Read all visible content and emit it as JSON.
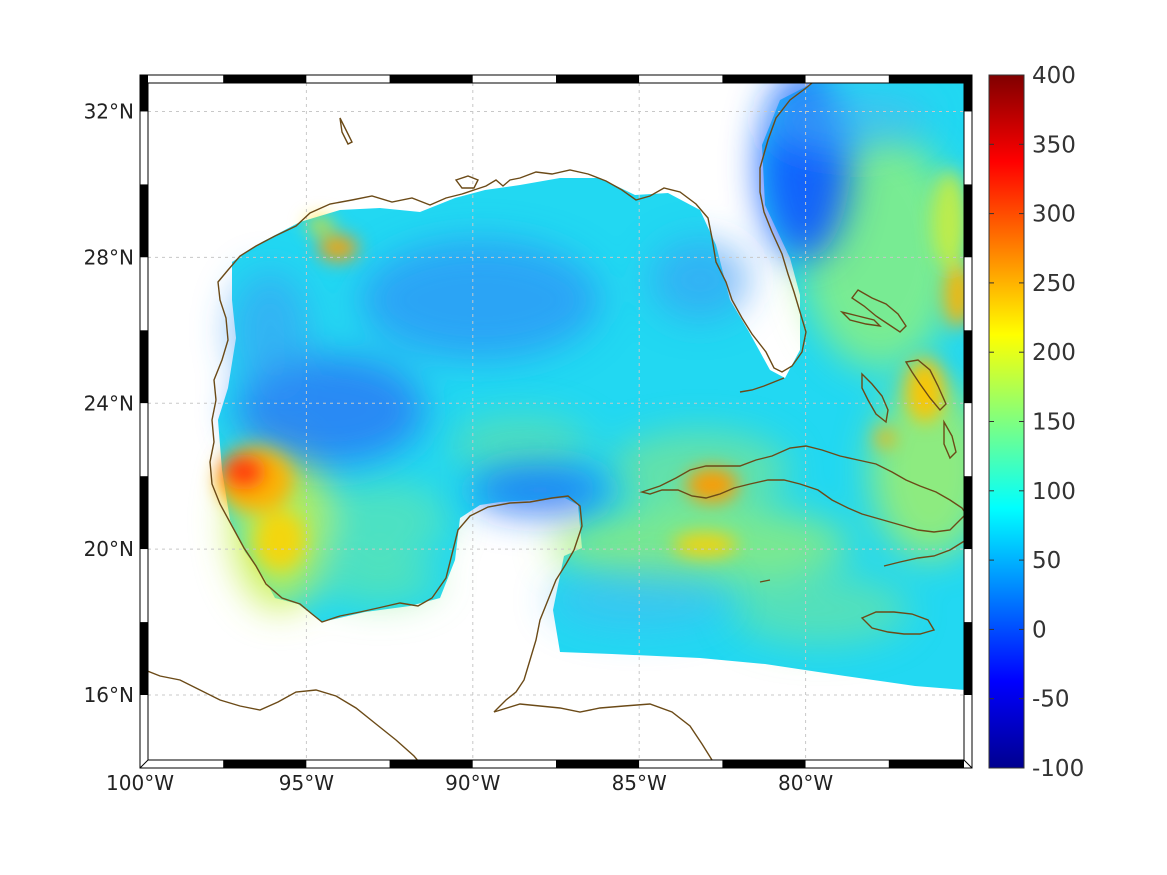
{
  "map": {
    "region": "Gulf of Mexico and western Caribbean",
    "projection": "equirectangular",
    "lon_range": [
      -100,
      -75
    ],
    "lat_range": [
      14,
      33
    ],
    "grid": true,
    "lon_ticks": [
      {
        "value": -100,
        "label": "100°W"
      },
      {
        "value": -95,
        "label": "95°W"
      },
      {
        "value": -90,
        "label": "90°W"
      },
      {
        "value": -85,
        "label": "85°W"
      },
      {
        "value": -80,
        "label": "80°W"
      }
    ],
    "lat_ticks": [
      {
        "value": 32,
        "label": "32°N"
      },
      {
        "value": 28,
        "label": "28°N"
      },
      {
        "value": 24,
        "label": "24°N"
      },
      {
        "value": 20,
        "label": "20°N"
      },
      {
        "value": 16,
        "label": "16°N"
      }
    ],
    "coastline_color": "#6b4a17",
    "ocean_field": {
      "colormap": "jet",
      "dominant_range": [
        50,
        150
      ],
      "hotspots": [
        {
          "name": "western-gulf-tamaulipas",
          "lon": -97,
          "lat": 22.2,
          "value": 280
        },
        {
          "name": "northwest-gulf-louisiana",
          "lon": -94.2,
          "lat": 28.5,
          "value": 220
        },
        {
          "name": "central-cuba",
          "lon": -82.5,
          "lat": 21.8,
          "value": 230
        },
        {
          "name": "south-of-cuba",
          "lon": -83,
          "lat": 20.4,
          "value": 200
        },
        {
          "name": "bahamas",
          "lon": -77,
          "lat": 24.7,
          "value": 220
        },
        {
          "name": "east-atlantic-edge",
          "lon": -75.2,
          "lat": 27.5,
          "value": 230
        }
      ],
      "lows": [
        {
          "name": "off-georgia-florida",
          "lon": -79.8,
          "lat": 31.3,
          "value": 20
        },
        {
          "name": "southwest-gulf",
          "lon": -94.3,
          "lat": 24.5,
          "value": 40
        },
        {
          "name": "campeche-north",
          "lon": -89,
          "lat": 21.6,
          "value": 35
        }
      ]
    }
  },
  "colorbar": {
    "min": -100,
    "max": 400,
    "colormap": "jet",
    "ticks": [
      {
        "value": 400,
        "label": "400"
      },
      {
        "value": 350,
        "label": "350"
      },
      {
        "value": 300,
        "label": "300"
      },
      {
        "value": 250,
        "label": "250"
      },
      {
        "value": 200,
        "label": "200"
      },
      {
        "value": 150,
        "label": "150"
      },
      {
        "value": 100,
        "label": "100"
      },
      {
        "value": 50,
        "label": "50"
      },
      {
        "value": 0,
        "label": "0"
      },
      {
        "value": -50,
        "label": "-50"
      },
      {
        "value": -100,
        "label": "-100"
      }
    ]
  }
}
